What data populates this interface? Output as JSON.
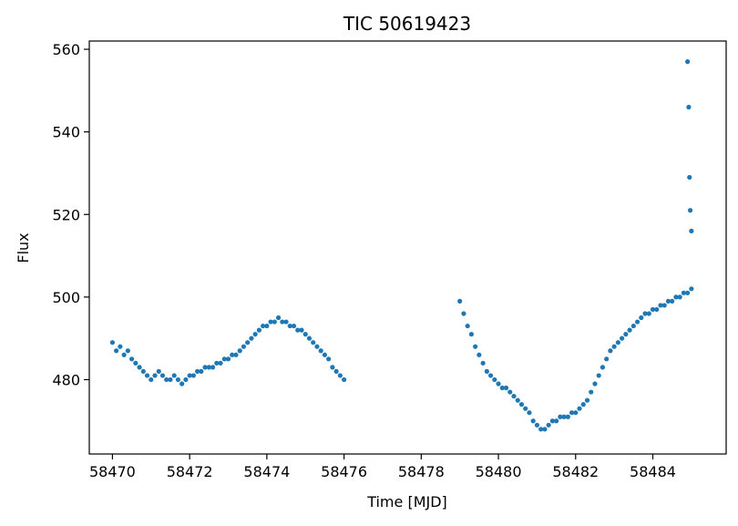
{
  "chart_data": {
    "type": "scatter",
    "title": "TIC 50619423",
    "xlabel": "Time [MJD]",
    "ylabel": "Flux",
    "xlim": [
      58469.4,
      58485.9
    ],
    "ylim": [
      462,
      562
    ],
    "xticks": [
      58470,
      58472,
      58474,
      58476,
      58478,
      58480,
      58482,
      58484
    ],
    "yticks": [
      480,
      500,
      520,
      540,
      560
    ],
    "grid": false,
    "marker_color": "#1f77b4",
    "series": [
      {
        "values_x": [
          58470.0,
          58470.1,
          58470.2,
          58470.3,
          58470.4,
          58470.5,
          58470.6,
          58470.7,
          58470.8,
          58470.9,
          58471.0,
          58471.1,
          58471.2,
          58471.3,
          58471.4,
          58471.5,
          58471.6,
          58471.7,
          58471.8,
          58471.9,
          58472.0,
          58472.1,
          58472.2,
          58472.3,
          58472.4,
          58472.5,
          58472.6,
          58472.7,
          58472.8,
          58472.9,
          58473.0,
          58473.1,
          58473.2,
          58473.3,
          58473.4,
          58473.5,
          58473.6,
          58473.7,
          58473.8,
          58473.9,
          58474.0,
          58474.1,
          58474.2,
          58474.3,
          58474.4,
          58474.5,
          58474.6,
          58474.7,
          58474.8,
          58474.9,
          58475.0,
          58475.1,
          58475.2,
          58475.3,
          58475.4,
          58475.5,
          58475.6,
          58475.7,
          58475.8,
          58475.9,
          58476.0,
          58479.0,
          58479.1,
          58479.2,
          58479.3,
          58479.4,
          58479.5,
          58479.6,
          58479.7,
          58479.8,
          58479.9,
          58480.0,
          58480.1,
          58480.2,
          58480.3,
          58480.4,
          58480.5,
          58480.6,
          58480.7,
          58480.8,
          58480.9,
          58481.0,
          58481.1,
          58481.2,
          58481.3,
          58481.4,
          58481.5,
          58481.6,
          58481.7,
          58481.8,
          58481.9,
          58482.0,
          58482.1,
          58482.2,
          58482.3,
          58482.4,
          58482.5,
          58482.6,
          58482.7,
          58482.8,
          58482.9,
          58483.0,
          58483.1,
          58483.2,
          58483.3,
          58483.4,
          58483.5,
          58483.6,
          58483.7,
          58483.8,
          58483.9,
          58484.0,
          58484.1,
          58484.2,
          58484.3,
          58484.4,
          58484.5,
          58484.6,
          58484.7,
          58484.8,
          58484.9,
          58485.0,
          58484.9,
          58484.93,
          58484.95,
          58484.97,
          58485.0
        ],
        "values_y": [
          489,
          487,
          488,
          486,
          487,
          485,
          484,
          483,
          482,
          481,
          480,
          481,
          482,
          481,
          480,
          480,
          481,
          480,
          479,
          480,
          481,
          481,
          482,
          482,
          483,
          483,
          483,
          484,
          484,
          485,
          485,
          486,
          486,
          487,
          488,
          489,
          490,
          491,
          492,
          493,
          493,
          494,
          494,
          495,
          494,
          494,
          493,
          493,
          492,
          492,
          491,
          490,
          489,
          488,
          487,
          486,
          485,
          483,
          482,
          481,
          480,
          499,
          496,
          493,
          491,
          488,
          486,
          484,
          482,
          481,
          480,
          479,
          478,
          478,
          477,
          476,
          475,
          474,
          473,
          472,
          470,
          469,
          468,
          468,
          469,
          470,
          470,
          471,
          471,
          471,
          472,
          472,
          473,
          474,
          475,
          477,
          479,
          481,
          483,
          485,
          487,
          488,
          489,
          490,
          491,
          492,
          493,
          494,
          495,
          496,
          496,
          497,
          497,
          498,
          498,
          499,
          499,
          500,
          500,
          501,
          501,
          502,
          557,
          546,
          529,
          521,
          516
        ]
      }
    ]
  }
}
